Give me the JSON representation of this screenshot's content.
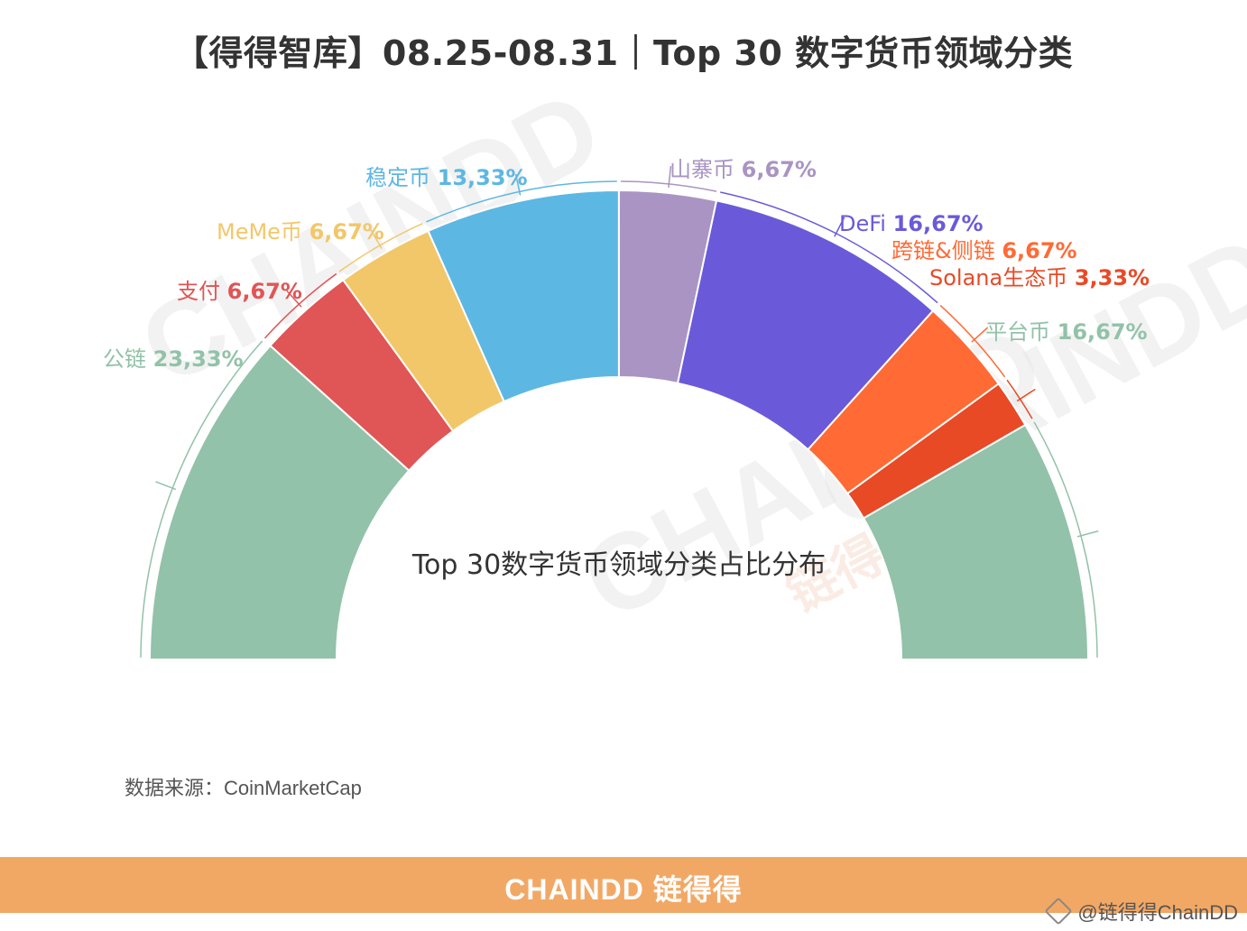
{
  "title": "【得得智库】08.25-08.31｜Top 30 数字货币领域分类",
  "chart_data": {
    "type": "pie",
    "shape": "semicircle-donut",
    "center_label": "Top 30数字货币领域分类占比分布",
    "slices": [
      {
        "label": "公链",
        "value": 23.33,
        "value_text": "23,33%",
        "color": "#92C2A9"
      },
      {
        "label": "支付",
        "value": 6.67,
        "value_text": "6,67%",
        "color": "#E05555"
      },
      {
        "label": "MeMe币",
        "value": 6.67,
        "value_text": "6,67%",
        "color": "#F2C76A"
      },
      {
        "label": "稳定币",
        "value": 13.33,
        "value_text": "13,33%",
        "color": "#5DB7E3"
      },
      {
        "label": "山寨币",
        "value": 6.67,
        "value_text": "6,67%",
        "color": "#A994C3"
      },
      {
        "label": "DeFi",
        "value": 16.67,
        "value_text": "16,67%",
        "color": "#6A5AD9"
      },
      {
        "label": "跨链&侧链",
        "value": 6.67,
        "value_text": "6,67%",
        "color": "#FF6A35"
      },
      {
        "label": "Solana生态币",
        "value": 3.33,
        "value_text": "3,33%",
        "color": "#E84A26"
      },
      {
        "label": "平台币",
        "value": 16.67,
        "value_text": "16,67%",
        "color": "#92C2A9"
      }
    ]
  },
  "source": "数据来源：CoinMarketCap",
  "watermark": {
    "text": "CHAINDD",
    "sub": "链得得"
  },
  "brand": "CHAINDD 链得得",
  "weibo": "@链得得ChainDD"
}
